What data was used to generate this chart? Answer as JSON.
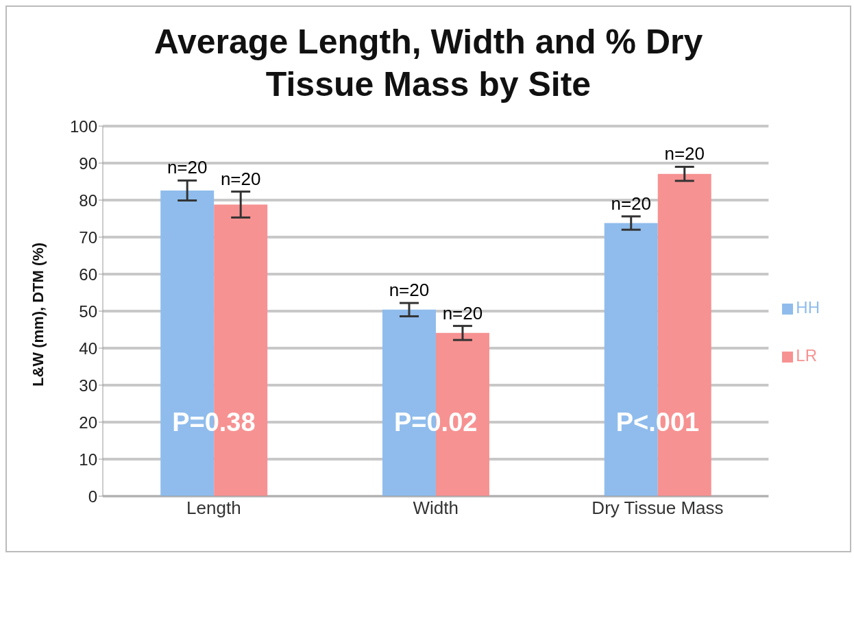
{
  "chart_data": {
    "type": "bar",
    "title": "Average Length, Width and % Dry Tissue Mass by Site",
    "ylabel": "L&W (mm), DTM (%)",
    "categories": [
      "Length",
      "Width",
      "Dry Tissue Mass"
    ],
    "series": [
      {
        "name": "HH",
        "color": "#8fbcec",
        "values": [
          82.6,
          50.4,
          73.8
        ],
        "errors": [
          2.7,
          1.8,
          1.8
        ]
      },
      {
        "name": "LR",
        "color": "#f79292",
        "values": [
          78.8,
          44.1,
          87.1
        ],
        "errors": [
          3.5,
          1.9,
          1.9
        ]
      }
    ],
    "annotations": [
      "n=20",
      "n=20",
      "n=20",
      "n=20",
      "n=20",
      "n=20",
      {
        "text": "P=0.38",
        "x": "Length",
        "y": 20
      },
      {
        "text": "P=0.02",
        "x": "Width",
        "y": 20
      },
      {
        "text": "P<.001",
        "x": "Dry Tissue Mass",
        "y": 20
      }
    ],
    "ylim": [
      0,
      100
    ],
    "yticks": [
      0,
      10,
      20,
      30,
      40,
      50,
      60,
      70,
      80,
      90,
      100
    ],
    "grid": "y",
    "legend": "right"
  }
}
